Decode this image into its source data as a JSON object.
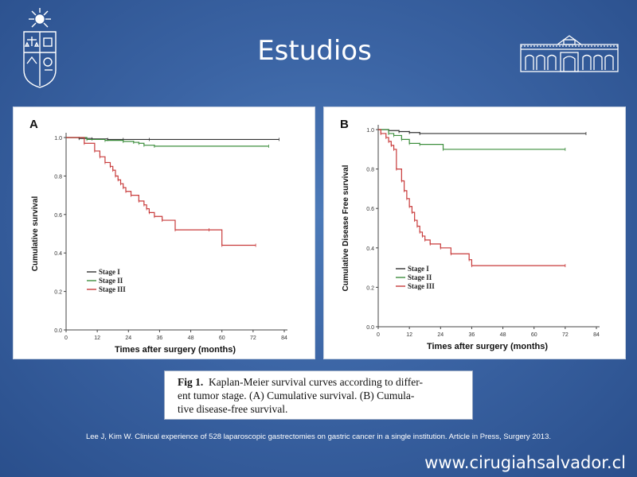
{
  "slide": {
    "title": "Estudios",
    "citation": "Lee J, Kim W. Clinical experience of 528 laparoscopic gastrectomies on gastric cancer in a single institution. Article in Press, Surgery 2013.",
    "website": "www.cirugiahsalvador.cl",
    "caption": {
      "figure_label": "Fig 1.",
      "line1_text": "Kaplan-Meier survival curves according to differ-",
      "line2_text": "ent tumor stage. (A) Cumulative survival. (B) Cumula-",
      "line3_text": "tive disease-free survival."
    }
  },
  "colors": {
    "stage_i": "#333333",
    "stage_ii": "#3f8f3f",
    "stage_iii": "#c83a3a",
    "background": "#3b64a4"
  },
  "icons": {
    "left_logo": "university-crest-icon",
    "right_logo": "hospital-building-icon"
  },
  "chart_data": [
    {
      "type": "line",
      "panel_letter": "A",
      "xlabel": "Times after surgery (months)",
      "ylabel": "Cumulative survival",
      "xlim": [
        0,
        84
      ],
      "ylim": [
        0,
        1.0
      ],
      "x_ticks": [
        0,
        12,
        24,
        36,
        48,
        60,
        72,
        84
      ],
      "y_ticks": [
        0.0,
        0.2,
        0.4,
        0.6,
        0.8,
        1.0
      ],
      "y_tick_labels": [
        "0.0",
        "0.2",
        "0.4",
        "0.6",
        "0.8",
        "1.0"
      ],
      "legend_position": "bottom-left",
      "series": [
        {
          "name": "Stage I",
          "x": [
            0,
            5,
            10,
            16,
            22,
            32,
            82
          ],
          "y": [
            1.0,
            0.995,
            0.993,
            0.99,
            0.99,
            0.99,
            0.99
          ]
        },
        {
          "name": "Stage II",
          "x": [
            0,
            8,
            15,
            22,
            26,
            28,
            30,
            34,
            78
          ],
          "y": [
            1.0,
            0.99,
            0.985,
            0.98,
            0.975,
            0.97,
            0.96,
            0.955,
            0.955
          ]
        },
        {
          "name": "Stage III",
          "x": [
            0,
            7,
            11,
            13,
            15,
            17,
            18,
            19,
            20,
            21,
            22,
            23,
            25,
            28,
            30,
            31,
            32,
            34,
            37,
            42,
            55,
            60,
            73
          ],
          "y": [
            1.0,
            0.97,
            0.93,
            0.9,
            0.87,
            0.85,
            0.83,
            0.8,
            0.78,
            0.76,
            0.74,
            0.72,
            0.7,
            0.67,
            0.65,
            0.63,
            0.61,
            0.59,
            0.57,
            0.52,
            0.52,
            0.44,
            0.44
          ]
        }
      ]
    },
    {
      "type": "line",
      "panel_letter": "B",
      "xlabel": "Times after surgery (months)",
      "ylabel": "Cumulative Disease Free survival",
      "xlim": [
        0,
        84
      ],
      "ylim": [
        0,
        1.0
      ],
      "x_ticks": [
        0,
        12,
        24,
        36,
        48,
        60,
        72,
        84
      ],
      "y_ticks": [
        0.0,
        0.2,
        0.4,
        0.6,
        0.8,
        1.0
      ],
      "y_tick_labels": [
        "0.0",
        "0.2",
        "0.4",
        "0.6",
        "0.8",
        "1.0"
      ],
      "legend_position": "bottom-left",
      "series": [
        {
          "name": "Stage I",
          "x": [
            0,
            4,
            8,
            12,
            16,
            80
          ],
          "y": [
            1.0,
            0.995,
            0.99,
            0.985,
            0.98,
            0.98
          ]
        },
        {
          "name": "Stage II",
          "x": [
            0,
            4,
            6,
            9,
            12,
            16,
            25,
            72
          ],
          "y": [
            1.0,
            0.98,
            0.97,
            0.95,
            0.93,
            0.925,
            0.9,
            0.9
          ]
        },
        {
          "name": "Stage III",
          "x": [
            0,
            1,
            3,
            4,
            5,
            6,
            7,
            9,
            10,
            11,
            12,
            13,
            14,
            15,
            16,
            17,
            18,
            20,
            24,
            28,
            35,
            36,
            72
          ],
          "y": [
            1.0,
            0.98,
            0.96,
            0.94,
            0.92,
            0.9,
            0.8,
            0.74,
            0.69,
            0.65,
            0.61,
            0.58,
            0.54,
            0.51,
            0.48,
            0.46,
            0.44,
            0.42,
            0.4,
            0.37,
            0.34,
            0.31,
            0.31
          ]
        }
      ]
    }
  ]
}
